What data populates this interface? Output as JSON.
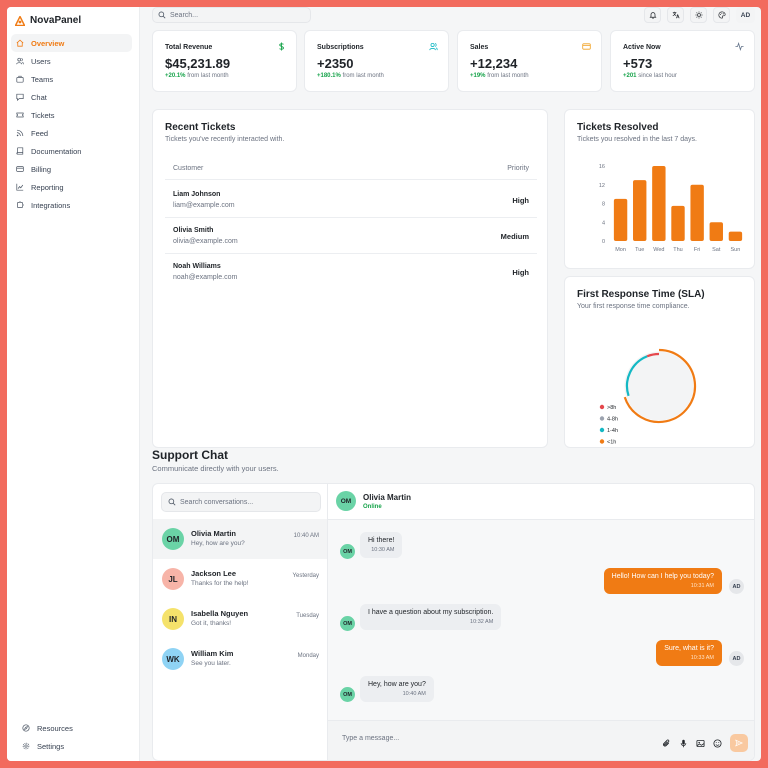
{
  "app": {
    "name": "NovaPanel"
  },
  "colors": {
    "accent": "#f07b14",
    "positive": "#16a34a",
    "online": "#16a34a"
  },
  "sidebar": {
    "items": [
      {
        "label": "Overview",
        "icon": "home-icon"
      },
      {
        "label": "Users",
        "icon": "users-icon"
      },
      {
        "label": "Teams",
        "icon": "briefcase-icon"
      },
      {
        "label": "Chat",
        "icon": "chat-icon"
      },
      {
        "label": "Tickets",
        "icon": "ticket-icon"
      },
      {
        "label": "Feed",
        "icon": "rss-icon"
      },
      {
        "label": "Documentation",
        "icon": "book-icon"
      },
      {
        "label": "Billing",
        "icon": "card-icon"
      },
      {
        "label": "Reporting",
        "icon": "chart-icon"
      },
      {
        "label": "Integrations",
        "icon": "puzzle-icon"
      }
    ],
    "bottom": [
      {
        "label": "Resources",
        "icon": "compass-icon"
      },
      {
        "label": "Settings",
        "icon": "gear-icon"
      }
    ]
  },
  "topbar": {
    "search_placeholder": "Search...",
    "avatar_initials": "AD"
  },
  "stats": [
    {
      "title": "Total Revenue",
      "value": "$45,231.89",
      "delta": "+20.1%",
      "delta_text": "from last month",
      "icon": "dollar-icon"
    },
    {
      "title": "Subscriptions",
      "value": "+2350",
      "delta": "+180.1%",
      "delta_text": "from last month",
      "icon": "users-icon"
    },
    {
      "title": "Sales",
      "value": "+12,234",
      "delta": "+19%",
      "delta_text": "from last month",
      "icon": "credit-card-icon"
    },
    {
      "title": "Active Now",
      "value": "+573",
      "delta": "+201",
      "delta_text": "since last hour",
      "icon": "activity-icon"
    }
  ],
  "recent_tickets": {
    "title": "Recent Tickets",
    "subtitle": "Tickets you've recently interacted with.",
    "columns": [
      "Customer",
      "Priority"
    ],
    "rows": [
      {
        "name": "Liam Johnson",
        "email": "liam@example.com",
        "priority": "High"
      },
      {
        "name": "Olivia Smith",
        "email": "olivia@example.com",
        "priority": "Medium"
      },
      {
        "name": "Noah Williams",
        "email": "noah@example.com",
        "priority": "High"
      }
    ]
  },
  "tickets_resolved": {
    "title": "Tickets Resolved",
    "subtitle": "Tickets you resolved in the last 7 days."
  },
  "sla": {
    "title": "First Response Time (SLA)",
    "subtitle": "Your first response time compliance."
  },
  "chart_data": [
    {
      "type": "bar",
      "title": "Tickets Resolved",
      "categories": [
        "Mon",
        "Tue",
        "Wed",
        "Thu",
        "Fri",
        "Sat",
        "Sun"
      ],
      "values": [
        9,
        13,
        16,
        7.5,
        12,
        4,
        2
      ],
      "yticks": [
        0,
        4,
        8,
        12,
        16
      ],
      "ylim": [
        0,
        16
      ],
      "color": "#f07b14"
    },
    {
      "type": "pie",
      "title": "First Response Time (SLA)",
      "labels": [
        ">8h",
        "4-8h",
        "1-4h",
        "<1h"
      ],
      "values": [
        6,
        0,
        24,
        70
      ],
      "colors": [
        "#e5484d",
        "#9ca3af",
        "#14b8c4",
        "#f07b14"
      ]
    }
  ],
  "support_chat": {
    "title": "Support Chat",
    "subtitle": "Communicate directly with your users.",
    "search_placeholder": "Search conversations...",
    "conversations": [
      {
        "initials": "OM",
        "name": "Olivia Martin",
        "last": "Hey, how are you?",
        "time": "10:40 AM",
        "color": "#6ad3a6"
      },
      {
        "initials": "JL",
        "name": "Jackson Lee",
        "last": "Thanks for the help!",
        "time": "Yesterday",
        "color": "#f7b4a8"
      },
      {
        "initials": "IN",
        "name": "Isabella Nguyen",
        "last": "Got it, thanks!",
        "time": "Tuesday",
        "color": "#f5e26b"
      },
      {
        "initials": "WK",
        "name": "William Kim",
        "last": "See you later.",
        "time": "Monday",
        "color": "#8fd3f4"
      }
    ],
    "thread": {
      "name": "Olivia Martin",
      "status": "Online",
      "initials": "OM",
      "messages": [
        {
          "from": "in",
          "text": "Hi there!",
          "time": "10:30 AM"
        },
        {
          "from": "out",
          "text": "Hello! How can I help you today?",
          "time": "10:31 AM"
        },
        {
          "from": "in",
          "text": "I have a question about my subscription.",
          "time": "10:32 AM"
        },
        {
          "from": "out",
          "text": "Sure, what is it?",
          "time": "10:33 AM"
        },
        {
          "from": "in",
          "text": "Hey, how are you?",
          "time": "10:40 AM"
        }
      ],
      "my_initials": "AD"
    },
    "composer_placeholder": "Type a message..."
  }
}
